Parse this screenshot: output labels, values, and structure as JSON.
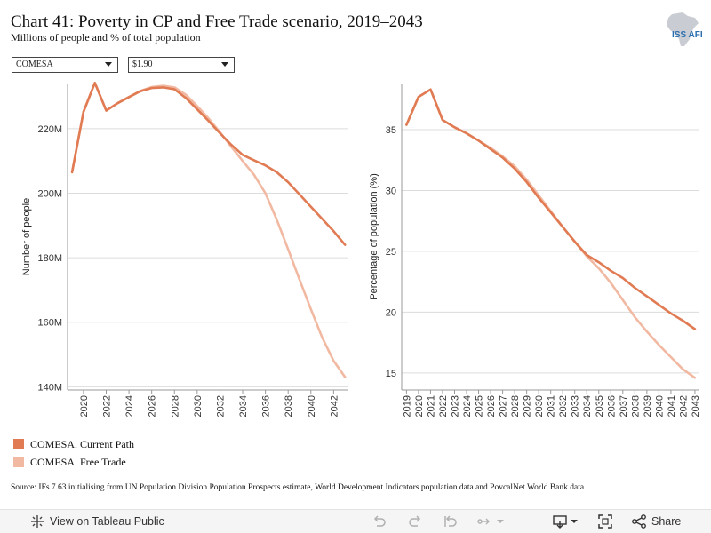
{
  "header": {
    "title": "Chart 41: Poverty in CP and Free Trade scenario, 2019–2043",
    "subtitle": "Millions of people and % of total population",
    "logo_text": "ISS AFI"
  },
  "filters": {
    "region": "COMESA",
    "poverty_line": "$1.90"
  },
  "colors": {
    "current_path": "#e07b53",
    "free_trade": "#f2b9a2",
    "gridline": "#dcdcdc",
    "axis": "#999999"
  },
  "legend": {
    "items": [
      {
        "label": "COMESA. Current Path",
        "color": "#e07b53"
      },
      {
        "label": "COMESA. Free Trade",
        "color": "#f2b9a2"
      }
    ]
  },
  "source": "Source: IFs 7.63 initialising from UN Population Division Population Prospects estimate, World Development Indicators population data and PovcalNet World Bank data",
  "toolbar": {
    "view_label": "View on Tableau Public",
    "share_label": "Share"
  },
  "chart_data": [
    {
      "type": "line",
      "ylabel": "Number of people",
      "xlabel": "",
      "x": [
        2019,
        2020,
        2021,
        2022,
        2023,
        2024,
        2025,
        2026,
        2027,
        2028,
        2029,
        2030,
        2031,
        2032,
        2033,
        2034,
        2035,
        2036,
        2037,
        2038,
        2039,
        2040,
        2041,
        2042,
        2043
      ],
      "xticks": [
        2020,
        2022,
        2024,
        2026,
        2028,
        2030,
        2032,
        2034,
        2036,
        2038,
        2040,
        2042
      ],
      "yticks": [
        140,
        160,
        180,
        200,
        220
      ],
      "ytick_labels": [
        "140M",
        "160M",
        "180M",
        "200M",
        "220M"
      ],
      "ylim": [
        139,
        234
      ],
      "xlim": [
        2018.6,
        2043.3
      ],
      "grid": true,
      "series": [
        {
          "name": "COMESA. Current Path",
          "color": "#e07b53",
          "values": [
            206.5,
            225.2,
            234.2,
            225.6,
            227.9,
            229.8,
            231.6,
            232.6,
            232.8,
            232.2,
            229.5,
            226.0,
            222.4,
            218.6,
            215.0,
            211.9,
            210.2,
            208.6,
            206.5,
            203.4,
            199.6,
            195.8,
            192.0,
            188.2,
            184.0
          ]
        },
        {
          "name": "COMESA. Free Trade",
          "color": "#f2b9a2",
          "values": [
            206.5,
            225.2,
            234.2,
            225.6,
            227.9,
            229.8,
            231.7,
            232.9,
            233.3,
            232.8,
            230.5,
            227.0,
            223.2,
            218.9,
            214.4,
            210.0,
            205.7,
            200.0,
            191.8,
            182.6,
            173.2,
            164.0,
            155.2,
            148.0,
            143.0
          ]
        }
      ]
    },
    {
      "type": "line",
      "ylabel": "Percentage of population (%)",
      "xlabel": "",
      "x": [
        2019,
        2020,
        2021,
        2022,
        2023,
        2024,
        2025,
        2026,
        2027,
        2028,
        2029,
        2030,
        2031,
        2032,
        2033,
        2034,
        2035,
        2036,
        2037,
        2038,
        2039,
        2040,
        2041,
        2042,
        2043
      ],
      "xticks": [
        2019,
        2020,
        2021,
        2022,
        2023,
        2024,
        2025,
        2026,
        2027,
        2028,
        2029,
        2030,
        2031,
        2032,
        2033,
        2034,
        2035,
        2036,
        2037,
        2038,
        2039,
        2040,
        2041,
        2042,
        2043
      ],
      "yticks": [
        15,
        20,
        25,
        30,
        35
      ],
      "ytick_labels": [
        "15",
        "20",
        "25",
        "30",
        "35"
      ],
      "ylim": [
        13.6,
        38.8
      ],
      "xlim": [
        2018.6,
        2043.3
      ],
      "grid": true,
      "series": [
        {
          "name": "COMESA. Current Path",
          "color": "#e07b53",
          "values": [
            35.4,
            37.7,
            38.3,
            35.8,
            35.2,
            34.7,
            34.1,
            33.4,
            32.7,
            31.8,
            30.7,
            29.4,
            28.2,
            27.0,
            25.8,
            24.7,
            24.1,
            23.4,
            22.8,
            22.0,
            21.3,
            20.6,
            19.9,
            19.3,
            18.6
          ]
        },
        {
          "name": "COMESA. Free Trade",
          "color": "#f2b9a2",
          "values": [
            35.4,
            37.7,
            38.3,
            35.8,
            35.2,
            34.7,
            34.1,
            33.5,
            32.8,
            32.0,
            30.9,
            29.6,
            28.3,
            27.0,
            25.8,
            24.6,
            23.6,
            22.4,
            21.0,
            19.6,
            18.4,
            17.3,
            16.3,
            15.3,
            14.6
          ]
        }
      ]
    }
  ]
}
